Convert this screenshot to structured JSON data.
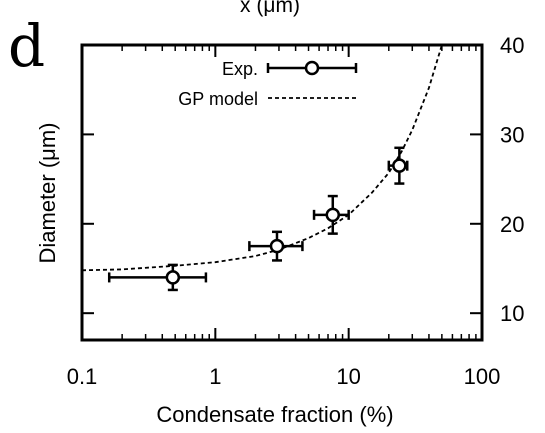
{
  "panel_label": "d",
  "top_cut_label": "x (μm)",
  "chart_data": {
    "type": "scatter",
    "xlabel": "Condensate fraction (%)",
    "ylabel": "Diameter (μm)",
    "xscale": "log",
    "xlim": [
      0.1,
      100
    ],
    "ylim": [
      7,
      40
    ],
    "x_ticks": [
      0.1,
      1,
      10,
      100
    ],
    "x_tick_labels": [
      "0.1",
      "1",
      "10",
      "100"
    ],
    "y_ticks": [
      10,
      20,
      30,
      40
    ],
    "y_tick_labels": [
      "10",
      "20",
      "30",
      "40"
    ],
    "y_axis_side": "right",
    "grid": false,
    "legend_position": "top",
    "series": [
      {
        "name": "Exp.",
        "kind": "points-with-errorbars",
        "color": "#000000",
        "marker": "open-circle",
        "points": [
          {
            "x": 0.48,
            "y": 14.0,
            "x_err": [
              0.16,
              0.85
            ],
            "y_err": [
              12.6,
              15.4
            ]
          },
          {
            "x": 2.9,
            "y": 17.5,
            "x_err": [
              1.8,
              4.5
            ],
            "y_err": [
              15.9,
              19.1
            ]
          },
          {
            "x": 7.6,
            "y": 21.0,
            "x_err": [
              5.5,
              10.0
            ],
            "y_err": [
              18.9,
              23.1
            ]
          },
          {
            "x": 24.0,
            "y": 26.5,
            "x_err": [
              20.0,
              27.5
            ],
            "y_err": [
              24.5,
              28.5
            ]
          }
        ]
      },
      {
        "name": "GP model",
        "kind": "line",
        "style": "dashed",
        "color": "#000000",
        "x": [
          0.1,
          0.2,
          0.5,
          1,
          2,
          3,
          5,
          7,
          10,
          15,
          20,
          25,
          30,
          40,
          50
        ],
        "y": [
          14.8,
          14.9,
          15.3,
          15.7,
          16.4,
          17.1,
          18.4,
          19.5,
          21.0,
          23.5,
          25.7,
          28.1,
          30.5,
          35.2,
          40.0
        ]
      }
    ]
  }
}
